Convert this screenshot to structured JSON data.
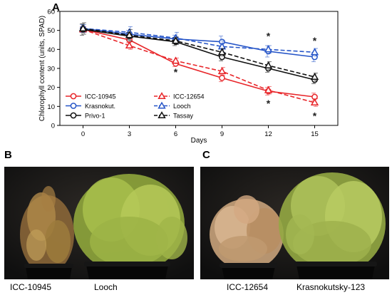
{
  "panels": {
    "a": "A",
    "b": "B",
    "c": "C"
  },
  "chart_data": {
    "type": "line",
    "xlabel": "Days",
    "ylabel": "Chlorophyll content (units, SPAD)",
    "x": [
      0,
      3,
      6,
      9,
      12,
      15
    ],
    "xlim": [
      -1.5,
      16.5
    ],
    "ylim": [
      0,
      60
    ],
    "xticks": [
      0,
      3,
      6,
      9,
      12,
      15
    ],
    "yticks": [
      0,
      10,
      20,
      30,
      40,
      50,
      60
    ],
    "grid": false,
    "legend_position": "bottom-left",
    "series": [
      {
        "name": "ICC-10945",
        "color": "#e8262a",
        "marker": "circle",
        "dashed": false,
        "values": [
          50.5,
          45,
          32.5,
          25,
          18,
          15
        ],
        "errors": [
          1.5,
          1.5,
          1.5,
          2,
          2,
          2
        ]
      },
      {
        "name": "ICC-12654",
        "color": "#e8262a",
        "marker": "triangle",
        "dashed": true,
        "values": [
          50.5,
          42,
          34,
          28.5,
          18.5,
          12
        ],
        "errors": [
          1.5,
          2,
          1.5,
          2,
          2,
          2
        ]
      },
      {
        "name": "Krasnokut.",
        "color": "#2756c8",
        "marker": "circle",
        "dashed": false,
        "values": [
          51,
          48,
          45.5,
          44,
          39,
          36
        ],
        "errors": [
          2,
          2,
          2,
          3,
          3,
          2.5
        ]
      },
      {
        "name": "Looch",
        "color": "#2756c8",
        "marker": "triangle",
        "dashed": true,
        "values": [
          51,
          49,
          46,
          41.5,
          40,
          38.5
        ],
        "errors": [
          2,
          3,
          3,
          3,
          2,
          2
        ]
      },
      {
        "name": "Privo-1",
        "color": "#111111",
        "marker": "circle",
        "dashed": false,
        "values": [
          50.5,
          47,
          44,
          36,
          30,
          24
        ],
        "errors": [
          3,
          2,
          2,
          2,
          2,
          2
        ]
      },
      {
        "name": "Tassay",
        "color": "#111111",
        "marker": "triangle",
        "dashed": true,
        "values": [
          51,
          47.5,
          44.5,
          38.5,
          31.5,
          25.5
        ],
        "errors": [
          3,
          3,
          2,
          2,
          2,
          2
        ]
      }
    ],
    "annotations": [
      {
        "text": "*",
        "x": 6,
        "y": 28.5
      },
      {
        "text": "*",
        "x": 12,
        "y": 47.5
      },
      {
        "text": "*",
        "x": 12,
        "y": 12
      },
      {
        "text": "*",
        "x": 15,
        "y": 45
      },
      {
        "text": "*",
        "x": 15,
        "y": 5.5
      }
    ]
  },
  "photos": {
    "b": {
      "left_label": "ICC-10945",
      "right_label": "Looch"
    },
    "c": {
      "left_label": "ICC-12654",
      "right_label": "Krasnokutsky-123"
    }
  }
}
